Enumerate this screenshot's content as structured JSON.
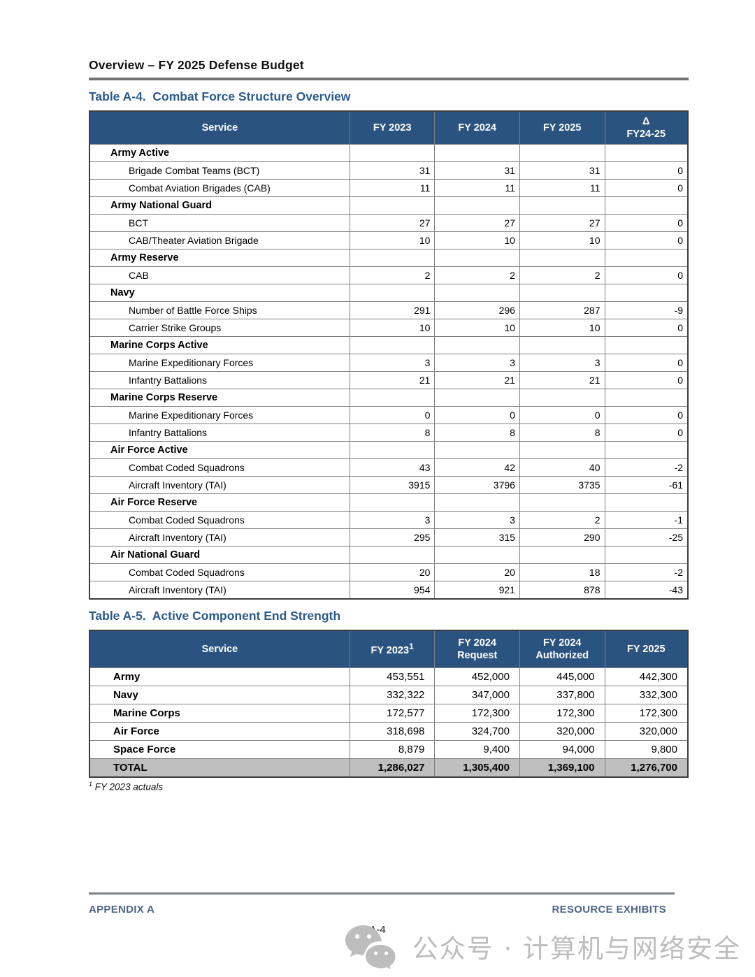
{
  "page": {
    "header_title": "Overview – FY 2025 Defense Budget",
    "footer_left": "APPENDIX A",
    "footer_right": "RESOURCE EXHIBITS",
    "page_number": "A-4"
  },
  "colors": {
    "header_bg": "#2B5380",
    "title_blue": "#2B5A8C",
    "footer_blue": "#4C6488",
    "total_bg": "#BFBFBF",
    "watermark_gray": "#BDBDBD",
    "rule_gray": "#737373",
    "border_inner": "#7F7F7F",
    "border_outer": "#3C3C3C"
  },
  "table_a4": {
    "title": "Table A-4.  Combat Force Structure Overview",
    "columns": [
      {
        "id": "service",
        "label": "Service"
      },
      {
        "id": "fy2023",
        "label": "FY 2023"
      },
      {
        "id": "fy2024",
        "label": "FY 2024"
      },
      {
        "id": "fy2025",
        "label": "FY 2025"
      },
      {
        "id": "delta_fy24_25",
        "label": "Δ",
        "label2": "FY24-25"
      }
    ],
    "rows": [
      {
        "type": "cat",
        "label": "Army Active",
        "values": [
          "",
          "",
          "",
          ""
        ]
      },
      {
        "type": "item",
        "label": "Brigade Combat Teams (BCT)",
        "values": [
          "31",
          "31",
          "31",
          "0"
        ]
      },
      {
        "type": "item",
        "label": "Combat Aviation Brigades (CAB)",
        "values": [
          "11",
          "11",
          "11",
          "0"
        ]
      },
      {
        "type": "cat",
        "label": "Army National Guard",
        "values": [
          "",
          "",
          "",
          ""
        ]
      },
      {
        "type": "item",
        "label": "BCT",
        "values": [
          "27",
          "27",
          "27",
          "0"
        ]
      },
      {
        "type": "item",
        "label": "CAB/Theater Aviation Brigade",
        "values": [
          "10",
          "10",
          "10",
          "0"
        ]
      },
      {
        "type": "cat",
        "label": "Army Reserve",
        "values": [
          "",
          "",
          "",
          ""
        ]
      },
      {
        "type": "item",
        "label": "CAB",
        "values": [
          "2",
          "2",
          "2",
          "0"
        ]
      },
      {
        "type": "cat",
        "label": "Navy",
        "values": [
          "",
          "",
          "",
          ""
        ]
      },
      {
        "type": "item",
        "label": "Number of Battle Force Ships",
        "values": [
          "291",
          "296",
          "287",
          "-9"
        ]
      },
      {
        "type": "item",
        "label": "Carrier Strike Groups",
        "values": [
          "10",
          "10",
          "10",
          "0"
        ]
      },
      {
        "type": "cat",
        "label": "Marine Corps Active",
        "values": [
          "",
          "",
          "",
          ""
        ]
      },
      {
        "type": "item",
        "label": "Marine Expeditionary Forces",
        "values": [
          "3",
          "3",
          "3",
          "0"
        ]
      },
      {
        "type": "item",
        "label": "Infantry Battalions",
        "values": [
          "21",
          "21",
          "21",
          "0"
        ]
      },
      {
        "type": "cat",
        "label": "Marine Corps Reserve",
        "values": [
          "",
          "",
          "",
          ""
        ]
      },
      {
        "type": "item",
        "label": "Marine Expeditionary Forces",
        "values": [
          "0",
          "0",
          "0",
          "0"
        ]
      },
      {
        "type": "item",
        "label": "Infantry Battalions",
        "values": [
          "8",
          "8",
          "8",
          "0"
        ]
      },
      {
        "type": "cat",
        "label": "Air Force Active",
        "values": [
          "",
          "",
          "",
          ""
        ]
      },
      {
        "type": "item",
        "label": "Combat Coded Squadrons",
        "values": [
          "43",
          "42",
          "40",
          "-2"
        ]
      },
      {
        "type": "item",
        "label": "Aircraft Inventory (TAI)",
        "values": [
          "3915",
          "3796",
          "3735",
          "-61"
        ]
      },
      {
        "type": "cat",
        "label": "Air Force Reserve",
        "values": [
          "",
          "",
          "",
          ""
        ]
      },
      {
        "type": "item",
        "label": "Combat Coded Squadrons",
        "values": [
          "3",
          "3",
          "2",
          "-1"
        ]
      },
      {
        "type": "item",
        "label": "Aircraft Inventory (TAI)",
        "values": [
          "295",
          "315",
          "290",
          "-25"
        ]
      },
      {
        "type": "cat",
        "label": "Air National Guard",
        "values": [
          "",
          "",
          "",
          ""
        ]
      },
      {
        "type": "item",
        "label": "Combat Coded Squadrons",
        "values": [
          "20",
          "20",
          "18",
          "-2"
        ]
      },
      {
        "type": "item",
        "label": "Aircraft Inventory (TAI)",
        "values": [
          "954",
          "921",
          "878",
          "-43"
        ]
      }
    ]
  },
  "table_a5": {
    "title": "Table A-5.  Active Component End Strength",
    "columns": [
      {
        "id": "service",
        "label": "Service"
      },
      {
        "id": "fy2023",
        "label": "FY 2023",
        "sup": "1"
      },
      {
        "id": "fy2024_request",
        "label": "FY 2024",
        "label2": "Request"
      },
      {
        "id": "fy2024_authorized",
        "label": "FY 2024",
        "label2": "Authorized"
      },
      {
        "id": "fy2025",
        "label": "FY 2025"
      }
    ],
    "rows": [
      {
        "type": "row",
        "label": "Army",
        "values": [
          "453,551",
          "452,000",
          "445,000",
          "442,300"
        ]
      },
      {
        "type": "row",
        "label": "Navy",
        "values": [
          "332,322",
          "347,000",
          "337,800",
          "332,300"
        ]
      },
      {
        "type": "row",
        "label": "Marine Corps",
        "values": [
          "172,577",
          "172,300",
          "172,300",
          "172,300"
        ]
      },
      {
        "type": "row",
        "label": "Air Force",
        "values": [
          "318,698",
          "324,700",
          "320,000",
          "320,000"
        ]
      },
      {
        "type": "row",
        "label": "Space Force",
        "values": [
          "8,879",
          "9,400",
          "94,000",
          "9,800"
        ]
      },
      {
        "type": "total",
        "label": "TOTAL",
        "values": [
          "1,286,027",
          "1,305,400",
          "1,369,100",
          "1,276,700"
        ]
      }
    ],
    "footnote_sup": "1",
    "footnote": "FY 2023 actuals"
  },
  "watermark": {
    "icon": "wechat-icon",
    "text": "公众号 · 计算机与网络安全"
  }
}
